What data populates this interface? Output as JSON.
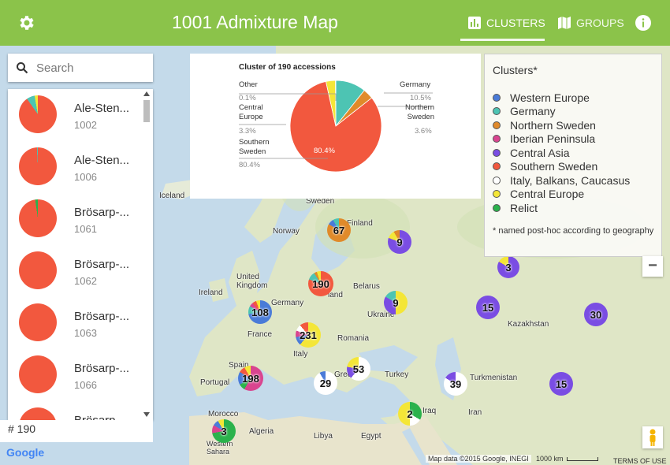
{
  "header": {
    "title": "1001 Admixture Map",
    "tab_clusters": "CLUSTERS",
    "tab_groups": "GROUPS"
  },
  "search": {
    "placeholder": "Search"
  },
  "list": {
    "items": [
      {
        "name": "Ale-Sten...",
        "id": "1002"
      },
      {
        "name": "Ale-Sten...",
        "id": "1006"
      },
      {
        "name": "Brösarp-...",
        "id": "1061"
      },
      {
        "name": "Brösarp-...",
        "id": "1062"
      },
      {
        "name": "Brösarp-...",
        "id": "1063"
      },
      {
        "name": "Brösarp-...",
        "id": "1066"
      },
      {
        "name": "Brösarp-...",
        "id": ""
      }
    ],
    "count": "# 190"
  },
  "pie": {
    "title": "Cluster of 190 accessions",
    "labels": [
      {
        "name": "Other",
        "value": "0.1%"
      },
      {
        "name": "Central Europe",
        "value": "3.3%"
      },
      {
        "name": "Southern Sweden",
        "value": "80.4%"
      },
      {
        "name": "Germany",
        "value": "10.5%"
      },
      {
        "name": "Northern Sweden",
        "value": "3.6%"
      }
    ],
    "inner_label": "80.4%"
  },
  "legend": {
    "title": "Clusters*",
    "items": [
      {
        "name": "Western Europe",
        "color": "#4a7bd8"
      },
      {
        "name": "Germany",
        "color": "#4dc4b3"
      },
      {
        "name": "Northern Sweden",
        "color": "#e08a2a"
      },
      {
        "name": "Iberian Peninsula",
        "color": "#d9448f"
      },
      {
        "name": "Central Asia",
        "color": "#7a4de3"
      },
      {
        "name": "Southern Sweden",
        "color": "#f2583e"
      },
      {
        "name": "Italy, Balkans, Caucasus",
        "color": "#ffffff"
      },
      {
        "name": "Central Europe",
        "color": "#f4e637"
      },
      {
        "name": "Relict",
        "color": "#2bb24c"
      }
    ],
    "note": "* named post-hoc according to geography"
  },
  "map": {
    "labels": {
      "iceland": "Iceland",
      "sweden": "Sweden",
      "finland": "Finland",
      "norway": "Norway",
      "uk": "United Kingdom",
      "ireland": "Ireland",
      "germany": "Germany",
      "belarus": "Belarus",
      "ukraine": "Ukraine",
      "france": "France",
      "romania": "Romania",
      "italy": "Italy",
      "spain": "Spain",
      "portugal": "Portugal",
      "greece": "Greece",
      "turkey": "Turkey",
      "kazakhstan": "Kazakhstan",
      "turkmenistan": "Turkmenistan",
      "iran": "Iran",
      "iraq": "Iraq",
      "morocco": "Morocco",
      "algeria": "Algeria",
      "libya": "Libya",
      "egypt": "Egypt",
      "western_sahara": "Western Sahara",
      "poland": "land"
    },
    "clusters": [
      "67",
      "9",
      "190",
      "3",
      "108",
      "9",
      "15",
      "30",
      "231",
      "198",
      "53",
      "29",
      "39",
      "15",
      "2",
      "3"
    ],
    "zoom_out": "−",
    "attribution": "Map data ©2015 Google, INEGI",
    "scale": "1000 km",
    "terms": "TERMS OF USE",
    "google": "Google"
  }
}
